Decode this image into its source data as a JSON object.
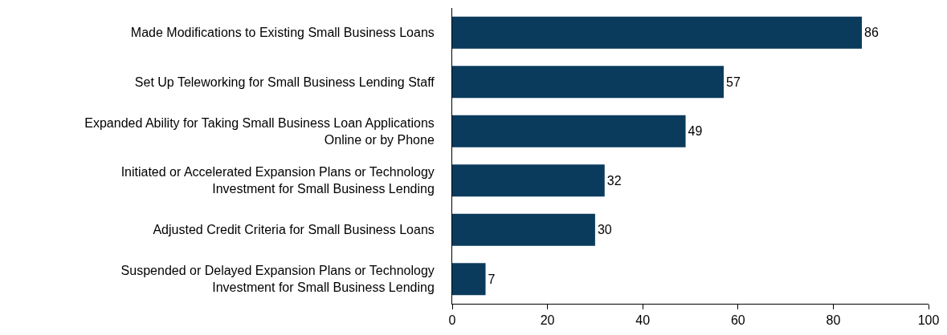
{
  "chart_data": {
    "type": "bar",
    "orientation": "horizontal",
    "categories": [
      "Made Modifications to Existing Small Business Loans",
      "Set Up Teleworking for Small Business Lending Staff",
      "Expanded Ability for Taking Small Business Loan Applications\nOnline or by Phone",
      "Initiated or Accelerated Expansion Plans or Technology\nInvestment for Small Business Lending",
      "Adjusted Credit Criteria for Small Business Loans",
      "Suspended or Delayed Expansion Plans or Technology\nInvestment for Small Business Lending"
    ],
    "values": [
      86,
      57,
      49,
      32,
      30,
      7
    ],
    "color": "#0a3b5c",
    "data_labels": true,
    "xlim": [
      0,
      100
    ],
    "xticks": [
      0,
      20,
      40,
      60,
      80,
      100
    ]
  }
}
